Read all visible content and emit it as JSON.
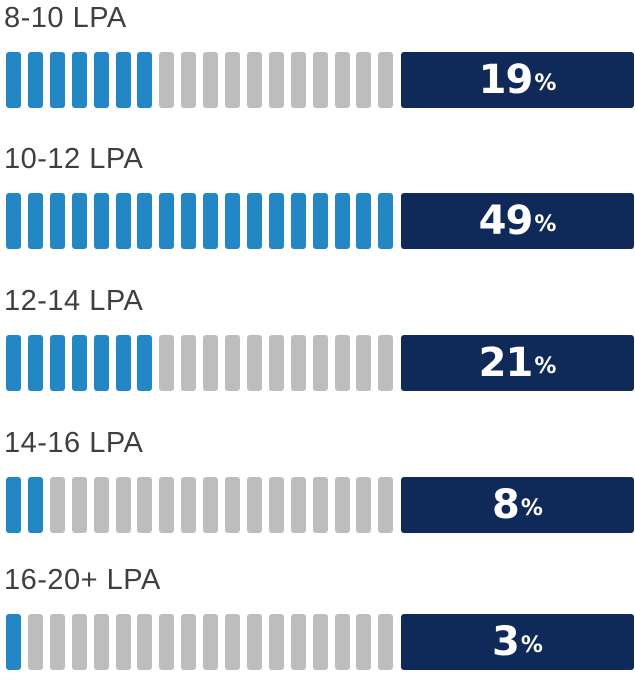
{
  "chart_data": {
    "type": "bar",
    "orientation": "horizontal",
    "style": "segmented-progress",
    "title": "",
    "xlabel": "",
    "ylabel": "",
    "categories": [
      "8-10 LPA",
      "10-12 LPA",
      "12-14 LPA",
      "14-16 LPA",
      "16-20+ LPA"
    ],
    "values": [
      19,
      49,
      21,
      8,
      3
    ],
    "filled_segments": [
      7,
      18,
      7,
      2,
      1
    ],
    "total_segments": 18,
    "unit_suffix": "%",
    "colors": {
      "filled_segment": "#2387c5",
      "empty_segment": "#bdbdbd",
      "value_box": "#0f2958",
      "value_text": "#ffffff",
      "label_text": "#3f3f3f"
    }
  }
}
